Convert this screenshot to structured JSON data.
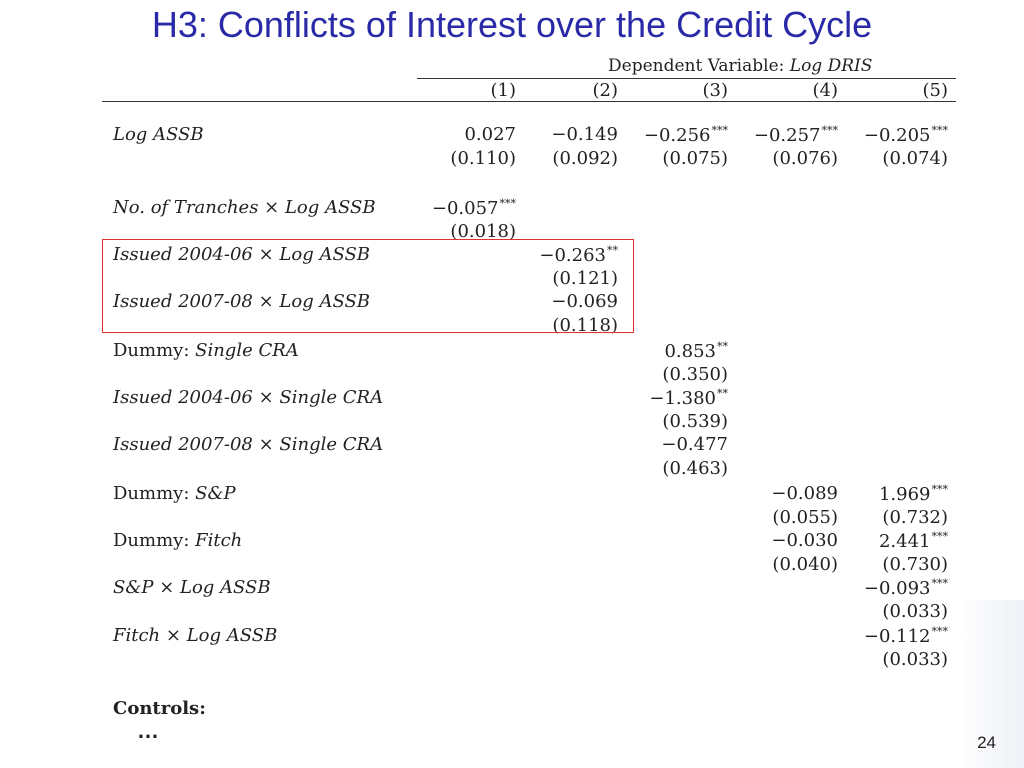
{
  "slide": {
    "title": "H3: Conflicts of Interest over the Credit Cycle",
    "page_number": "24",
    "controls_label": "Controls:",
    "ellipsis": "…"
  },
  "table": {
    "dependent_variable_prefix": "Dependent Variable: ",
    "dependent_variable": "Log DRIS",
    "columns": [
      "(1)",
      "(2)",
      "(3)",
      "(4)",
      "(5)"
    ],
    "rows": [
      {
        "label": [
          {
            "t": "Log ASSB",
            "it": true
          }
        ],
        "coef": [
          "0.027",
          "−0.149",
          "−0.256",
          "−0.257",
          "−0.205"
        ],
        "stars": [
          "",
          "",
          "***",
          "***",
          "***"
        ],
        "se": [
          "(0.110)",
          "(0.092)",
          "(0.075)",
          "(0.076)",
          "(0.074)"
        ]
      },
      {
        "label": [
          {
            "t": "No. of Tranches",
            "it": true
          },
          {
            "t": " × ",
            "it": false
          },
          {
            "t": "Log ASSB",
            "it": true
          }
        ],
        "coef": [
          "−0.057",
          "",
          "",
          "",
          ""
        ],
        "stars": [
          "***",
          "",
          "",
          "",
          ""
        ],
        "se": [
          "(0.018)",
          "",
          "",
          "",
          ""
        ]
      },
      {
        "label": [
          {
            "t": "Issued 2004-06",
            "it": true
          },
          {
            "t": " × ",
            "it": false
          },
          {
            "t": "Log ASSB",
            "it": true
          }
        ],
        "coef": [
          "",
          "−0.263",
          "",
          "",
          ""
        ],
        "stars": [
          "",
          "**",
          "",
          "",
          ""
        ],
        "se": [
          "",
          "(0.121)",
          "",
          "",
          ""
        ]
      },
      {
        "label": [
          {
            "t": "Issued 2007-08",
            "it": true
          },
          {
            "t": " × ",
            "it": false
          },
          {
            "t": "Log ASSB",
            "it": true
          }
        ],
        "coef": [
          "",
          "−0.069",
          "",
          "",
          ""
        ],
        "stars": [
          "",
          "",
          "",
          "",
          ""
        ],
        "se": [
          "",
          "(0.118)",
          "",
          "",
          ""
        ]
      },
      {
        "label": [
          {
            "t": "Dummy: ",
            "it": false
          },
          {
            "t": "Single CRA",
            "it": true
          }
        ],
        "coef": [
          "",
          "",
          "0.853",
          "",
          ""
        ],
        "stars": [
          "",
          "",
          "**",
          "",
          ""
        ],
        "se": [
          "",
          "",
          "(0.350)",
          "",
          ""
        ]
      },
      {
        "label": [
          {
            "t": "Issued 2004-06",
            "it": true
          },
          {
            "t": " × ",
            "it": false
          },
          {
            "t": "Single CRA",
            "it": true
          }
        ],
        "coef": [
          "",
          "",
          "−1.380",
          "",
          ""
        ],
        "stars": [
          "",
          "",
          "**",
          "",
          ""
        ],
        "se": [
          "",
          "",
          "(0.539)",
          "",
          ""
        ]
      },
      {
        "label": [
          {
            "t": "Issued 2007-08",
            "it": true
          },
          {
            "t": " × ",
            "it": false
          },
          {
            "t": "Single CRA",
            "it": true
          }
        ],
        "coef": [
          "",
          "",
          "−0.477",
          "",
          ""
        ],
        "stars": [
          "",
          "",
          "",
          "",
          ""
        ],
        "se": [
          "",
          "",
          "(0.463)",
          "",
          ""
        ]
      },
      {
        "label": [
          {
            "t": "Dummy: ",
            "it": false
          },
          {
            "t": "S&P",
            "it": true
          }
        ],
        "coef": [
          "",
          "",
          "",
          "−0.089",
          "1.969"
        ],
        "stars": [
          "",
          "",
          "",
          "",
          "***"
        ],
        "se": [
          "",
          "",
          "",
          "(0.055)",
          "(0.732)"
        ]
      },
      {
        "label": [
          {
            "t": "Dummy: ",
            "it": false
          },
          {
            "t": "Fitch",
            "it": true
          }
        ],
        "coef": [
          "",
          "",
          "",
          "−0.030",
          "2.441"
        ],
        "stars": [
          "",
          "",
          "",
          "",
          "***"
        ],
        "se": [
          "",
          "",
          "",
          "(0.040)",
          "(0.730)"
        ]
      },
      {
        "label": [
          {
            "t": "S&P",
            "it": true
          },
          {
            "t": " × ",
            "it": false
          },
          {
            "t": "Log ASSB",
            "it": true
          }
        ],
        "coef": [
          "",
          "",
          "",
          "",
          "−0.093"
        ],
        "stars": [
          "",
          "",
          "",
          "",
          "***"
        ],
        "se": [
          "",
          "",
          "",
          "",
          "(0.033)"
        ]
      },
      {
        "label": [
          {
            "t": "Fitch",
            "it": true
          },
          {
            "t": " × ",
            "it": false
          },
          {
            "t": "Log ASSB",
            "it": true
          }
        ],
        "coef": [
          "",
          "",
          "",
          "",
          "−0.112"
        ],
        "stars": [
          "",
          "",
          "",
          "",
          "***"
        ],
        "se": [
          "",
          "",
          "",
          "",
          "(0.033)"
        ]
      }
    ]
  },
  "colors": {
    "title": "#2a2aa8",
    "highlight_box": "#e03030"
  }
}
